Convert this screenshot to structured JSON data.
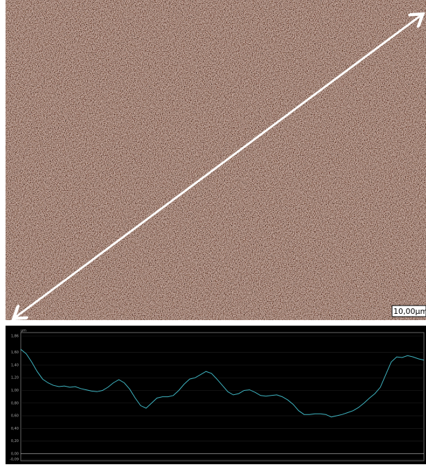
{
  "image": {
    "scale_label": "10,00µm"
  },
  "chart_data": {
    "type": "line",
    "y_unit": "µm",
    "color": "#3fb7c4",
    "ylim": [
      -0.09,
      1.86
    ],
    "yticks": [
      {
        "value": -0.09,
        "label": "-0,09"
      },
      {
        "value": 0,
        "label": "0,00"
      },
      {
        "value": 0.2,
        "label": "0,20"
      },
      {
        "value": 0.4,
        "label": "0,40"
      },
      {
        "value": 0.6,
        "label": "0,60"
      },
      {
        "value": 0.8,
        "label": "0,80"
      },
      {
        "value": 1,
        "label": "1,00"
      },
      {
        "value": 1.2,
        "label": "1,20"
      },
      {
        "value": 1.4,
        "label": "1,40"
      },
      {
        "value": 1.6,
        "label": "1,60"
      },
      {
        "value": 1.86,
        "label": "1,86"
      }
    ],
    "values": [
      1.65,
      1.58,
      1.45,
      1.3,
      1.18,
      1.12,
      1.08,
      1.06,
      1.07,
      1.05,
      1.06,
      1.03,
      1.01,
      0.99,
      0.98,
      1.0,
      1.05,
      1.12,
      1.17,
      1.12,
      1.02,
      0.88,
      0.76,
      0.72,
      0.8,
      0.88,
      0.9,
      0.9,
      0.92,
      1.0,
      1.1,
      1.18,
      1.2,
      1.25,
      1.3,
      1.27,
      1.18,
      1.08,
      0.98,
      0.93,
      0.95,
      1.0,
      1.01,
      0.97,
      0.92,
      0.91,
      0.92,
      0.93,
      0.9,
      0.85,
      0.78,
      0.68,
      0.62,
      0.62,
      0.63,
      0.63,
      0.62,
      0.58,
      0.6,
      0.62,
      0.65,
      0.68,
      0.73,
      0.8,
      0.88,
      0.95,
      1.05,
      1.25,
      1.45,
      1.53,
      1.52,
      1.55,
      1.53,
      1.5,
      1.48
    ]
  }
}
